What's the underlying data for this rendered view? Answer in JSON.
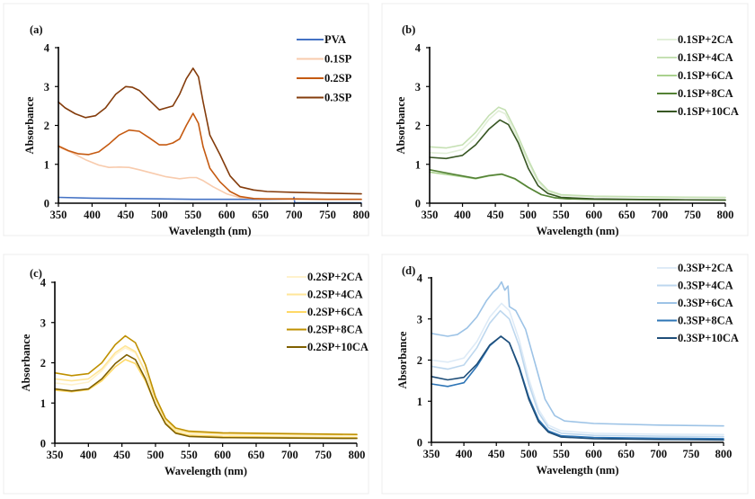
{
  "chart_data": [
    {
      "panel": "(a)",
      "type": "line",
      "xlabel": "Wavelength (nm)",
      "ylabel": "Absorbance",
      "xlim": [
        350,
        800
      ],
      "ylim": [
        0,
        4
      ],
      "xticks": [
        350,
        400,
        450,
        500,
        550,
        600,
        650,
        700,
        750,
        800
      ],
      "yticks": [
        0,
        1,
        2,
        3,
        4
      ],
      "legend": "top-right",
      "grid": false,
      "series": [
        {
          "name": "PVA",
          "color": "#4472c4",
          "x": [
            350,
            400,
            450,
            500,
            550,
            600,
            650,
            699,
            700,
            701,
            750,
            800
          ],
          "y": [
            0.15,
            0.13,
            0.12,
            0.11,
            0.1,
            0.1,
            0.1,
            0.1,
            0.15,
            0.01,
            0.01,
            0.01
          ]
        },
        {
          "name": "0.1SP",
          "color": "#f8cbad",
          "x": [
            350,
            370,
            390,
            410,
            425,
            440,
            455,
            470,
            490,
            510,
            530,
            545,
            555,
            565,
            580,
            600,
            620,
            650,
            700,
            750,
            800
          ],
          "y": [
            1.45,
            1.3,
            1.12,
            0.98,
            0.92,
            0.93,
            0.92,
            0.86,
            0.77,
            0.68,
            0.63,
            0.66,
            0.66,
            0.58,
            0.42,
            0.24,
            0.14,
            0.11,
            0.1,
            0.1,
            0.1
          ]
        },
        {
          "name": "0.2SP",
          "color": "#c55a11",
          "x": [
            350,
            365,
            380,
            395,
            410,
            425,
            440,
            455,
            470,
            485,
            500,
            510,
            520,
            530,
            540,
            550,
            558,
            565,
            575,
            590,
            605,
            620,
            640,
            660,
            700,
            750,
            800
          ],
          "y": [
            1.47,
            1.35,
            1.27,
            1.25,
            1.32,
            1.52,
            1.75,
            1.88,
            1.85,
            1.68,
            1.5,
            1.5,
            1.55,
            1.65,
            2.0,
            2.31,
            2.05,
            1.45,
            0.9,
            0.55,
            0.3,
            0.17,
            0.12,
            0.11,
            0.11,
            0.1,
            0.1
          ]
        },
        {
          "name": "0.3SP",
          "color": "#843c0c",
          "x": [
            350,
            360,
            375,
            390,
            405,
            420,
            435,
            450,
            460,
            470,
            485,
            500,
            510,
            520,
            530,
            540,
            550,
            558,
            565,
            575,
            590,
            605,
            620,
            640,
            660,
            700,
            750,
            800
          ],
          "y": [
            2.6,
            2.45,
            2.3,
            2.2,
            2.25,
            2.45,
            2.8,
            3.0,
            2.98,
            2.9,
            2.65,
            2.4,
            2.45,
            2.5,
            2.8,
            3.2,
            3.47,
            3.25,
            2.6,
            1.75,
            1.25,
            0.7,
            0.42,
            0.34,
            0.3,
            0.28,
            0.26,
            0.24
          ]
        }
      ]
    },
    {
      "panel": "(b)",
      "type": "line",
      "xlabel": "Wavelength (nm)",
      "ylabel": "Absorbance",
      "xlim": [
        350,
        800
      ],
      "ylim": [
        0,
        4
      ],
      "xticks": [
        350,
        400,
        450,
        500,
        550,
        600,
        650,
        700,
        750,
        800
      ],
      "yticks": [
        0,
        1,
        2,
        3,
        4
      ],
      "legend": "top-right",
      "grid": false,
      "series": [
        {
          "name": "0.1SP+2CA",
          "color": "#e2efd9",
          "x": [
            350,
            375,
            400,
            420,
            440,
            455,
            465,
            480,
            500,
            515,
            530,
            550,
            600,
            700,
            800
          ],
          "y": [
            1.3,
            1.28,
            1.38,
            1.7,
            2.15,
            2.38,
            2.3,
            1.8,
            1.05,
            0.55,
            0.3,
            0.2,
            0.17,
            0.15,
            0.14
          ]
        },
        {
          "name": "0.1SP+4CA",
          "color": "#c5e0b3",
          "x": [
            350,
            375,
            400,
            420,
            440,
            455,
            465,
            480,
            500,
            515,
            530,
            550,
            600,
            700,
            800
          ],
          "y": [
            1.45,
            1.42,
            1.5,
            1.82,
            2.25,
            2.47,
            2.4,
            1.9,
            1.12,
            0.6,
            0.33,
            0.22,
            0.18,
            0.16,
            0.15
          ]
        },
        {
          "name": "0.1SP+6CA",
          "color": "#a9d18e",
          "x": [
            350,
            375,
            400,
            420,
            440,
            460,
            480,
            500,
            520,
            540,
            560,
            600,
            700,
            800
          ],
          "y": [
            0.8,
            0.74,
            0.68,
            0.63,
            0.7,
            0.74,
            0.62,
            0.4,
            0.22,
            0.14,
            0.11,
            0.1,
            0.09,
            0.08
          ]
        },
        {
          "name": "0.1SP+8CA",
          "color": "#548235",
          "x": [
            350,
            375,
            400,
            420,
            440,
            460,
            480,
            500,
            520,
            540,
            560,
            600,
            700,
            800
          ],
          "y": [
            0.86,
            0.78,
            0.7,
            0.64,
            0.71,
            0.75,
            0.63,
            0.41,
            0.22,
            0.14,
            0.11,
            0.1,
            0.09,
            0.08
          ]
        },
        {
          "name": "0.1SP+10CA",
          "color": "#375623",
          "x": [
            350,
            375,
            400,
            420,
            440,
            457,
            470,
            485,
            500,
            515,
            530,
            550,
            600,
            700,
            800
          ],
          "y": [
            1.18,
            1.15,
            1.23,
            1.5,
            1.9,
            2.14,
            2.02,
            1.55,
            0.9,
            0.45,
            0.25,
            0.15,
            0.11,
            0.09,
            0.08
          ]
        }
      ]
    },
    {
      "panel": "(c)",
      "type": "line",
      "xlabel": "Wavelength (nm)",
      "ylabel": "Absorbance",
      "xlim": [
        350,
        800
      ],
      "ylim": [
        0,
        4
      ],
      "xticks": [
        350,
        400,
        450,
        500,
        550,
        600,
        650,
        700,
        750,
        800
      ],
      "yticks": [
        0,
        1,
        2,
        3,
        4
      ],
      "legend": "top-right",
      "grid": false,
      "series": [
        {
          "name": "0.2SP+2CA",
          "color": "#fff2cc",
          "x": [
            350,
            375,
            400,
            420,
            440,
            455,
            470,
            485,
            500,
            515,
            530,
            550,
            600,
            700,
            800
          ],
          "y": [
            1.5,
            1.45,
            1.52,
            1.8,
            2.2,
            2.37,
            2.25,
            1.75,
            1.05,
            0.55,
            0.32,
            0.25,
            0.22,
            0.2,
            0.19
          ]
        },
        {
          "name": "0.2SP+4CA",
          "color": "#ffe699",
          "x": [
            350,
            375,
            400,
            420,
            440,
            455,
            470,
            485,
            500,
            515,
            530,
            550,
            600,
            700,
            800
          ],
          "y": [
            1.6,
            1.55,
            1.6,
            1.85,
            2.25,
            2.42,
            2.28,
            1.78,
            1.08,
            0.58,
            0.34,
            0.27,
            0.24,
            0.22,
            0.21
          ]
        },
        {
          "name": "0.2SP+6CA",
          "color": "#ffd966",
          "x": [
            350,
            375,
            400,
            420,
            440,
            455,
            470,
            485,
            500,
            515,
            530,
            550,
            600,
            700,
            800
          ],
          "y": [
            1.32,
            1.28,
            1.33,
            1.55,
            1.9,
            2.08,
            1.98,
            1.55,
            0.95,
            0.5,
            0.28,
            0.2,
            0.17,
            0.15,
            0.14
          ]
        },
        {
          "name": "0.2SP+8CA",
          "color": "#bf9000",
          "x": [
            350,
            375,
            400,
            420,
            440,
            455,
            470,
            485,
            500,
            515,
            530,
            550,
            600,
            700,
            800
          ],
          "y": [
            1.75,
            1.68,
            1.73,
            2.0,
            2.45,
            2.67,
            2.5,
            1.95,
            1.15,
            0.62,
            0.38,
            0.3,
            0.26,
            0.24,
            0.22
          ]
        },
        {
          "name": "0.2SP+10CA",
          "color": "#7f6000",
          "x": [
            350,
            375,
            400,
            420,
            440,
            457,
            470,
            485,
            500,
            515,
            530,
            550,
            600,
            700,
            800
          ],
          "y": [
            1.35,
            1.3,
            1.35,
            1.6,
            1.98,
            2.2,
            2.08,
            1.6,
            0.95,
            0.48,
            0.25,
            0.17,
            0.14,
            0.13,
            0.12
          ]
        }
      ]
    },
    {
      "panel": "(d)",
      "type": "line",
      "xlabel": "Wavelength (nm)",
      "ylabel": "Absorbance",
      "xlim": [
        350,
        800
      ],
      "ylim": [
        0,
        4
      ],
      "xticks": [
        350,
        400,
        450,
        500,
        550,
        600,
        650,
        700,
        750,
        800
      ],
      "yticks": [
        0,
        1,
        2,
        3,
        4
      ],
      "legend": "top-right",
      "grid": false,
      "series": [
        {
          "name": "0.3SP+2CA",
          "color": "#deebf7",
          "x": [
            350,
            375,
            400,
            420,
            440,
            458,
            470,
            485,
            500,
            515,
            530,
            550,
            600,
            700,
            800
          ],
          "y": [
            2.0,
            1.95,
            2.05,
            2.45,
            3.05,
            3.38,
            3.2,
            2.5,
            1.55,
            0.8,
            0.42,
            0.28,
            0.22,
            0.2,
            0.19
          ]
        },
        {
          "name": "0.3SP+4CA",
          "color": "#bdd7ee",
          "x": [
            350,
            375,
            400,
            420,
            440,
            456,
            470,
            485,
            500,
            515,
            530,
            550,
            600,
            700,
            800
          ],
          "y": [
            1.85,
            1.78,
            1.88,
            2.3,
            2.9,
            3.2,
            3.0,
            2.35,
            1.42,
            0.72,
            0.36,
            0.22,
            0.17,
            0.15,
            0.14
          ]
        },
        {
          "name": "0.3SP+6CA",
          "color": "#9dc3e6",
          "x": [
            350,
            360,
            375,
            390,
            405,
            420,
            435,
            445,
            452,
            458,
            463,
            468,
            470,
            480,
            495,
            510,
            525,
            540,
            555,
            600,
            700,
            800
          ],
          "y": [
            2.65,
            2.62,
            2.58,
            2.62,
            2.78,
            3.05,
            3.45,
            3.65,
            3.75,
            3.9,
            3.7,
            3.8,
            3.3,
            3.2,
            2.75,
            1.9,
            1.05,
            0.65,
            0.52,
            0.46,
            0.42,
            0.4
          ]
        },
        {
          "name": "0.3SP+8CA",
          "color": "#2e75b6",
          "x": [
            350,
            375,
            400,
            420,
            440,
            457,
            470,
            485,
            500,
            515,
            530,
            550,
            600,
            700,
            800
          ],
          "y": [
            1.42,
            1.36,
            1.45,
            1.85,
            2.35,
            2.58,
            2.42,
            1.85,
            1.1,
            0.55,
            0.28,
            0.16,
            0.12,
            0.1,
            0.09
          ]
        },
        {
          "name": "0.3SP+10CA",
          "color": "#1f4e79",
          "x": [
            350,
            375,
            400,
            420,
            440,
            457,
            470,
            485,
            500,
            515,
            530,
            550,
            600,
            700,
            800
          ],
          "y": [
            1.6,
            1.52,
            1.58,
            1.9,
            2.37,
            2.58,
            2.42,
            1.82,
            1.05,
            0.5,
            0.25,
            0.13,
            0.09,
            0.07,
            0.06
          ]
        }
      ]
    }
  ]
}
